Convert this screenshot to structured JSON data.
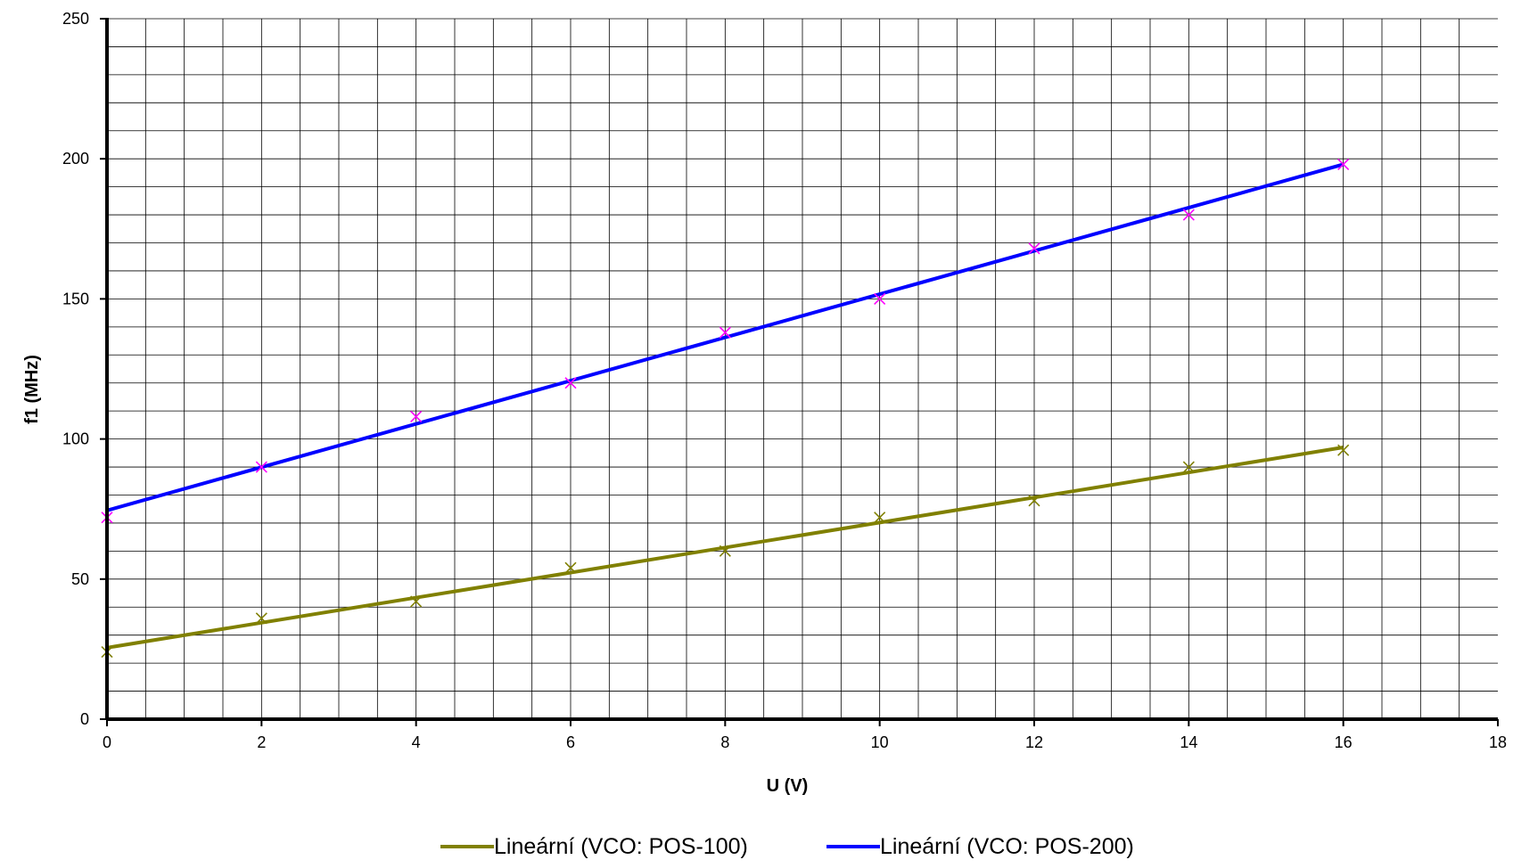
{
  "chart_data": {
    "type": "scatter",
    "xlabel": "U (V)",
    "ylabel": "f1 (MHz)",
    "xlim": [
      0,
      18
    ],
    "ylim": [
      0,
      250
    ],
    "x_ticks": [
      "0",
      "2",
      "4",
      "6",
      "8",
      "10",
      "12",
      "14",
      "16",
      "18"
    ],
    "y_ticks": [
      "0",
      "50",
      "100",
      "150",
      "200",
      "250"
    ],
    "grid": true,
    "legend_position": "bottom",
    "series": [
      {
        "id": "pos100",
        "point_color": "#808000",
        "points": [
          [
            0,
            24
          ],
          [
            2,
            36
          ],
          [
            4,
            42
          ],
          [
            6,
            54
          ],
          [
            8,
            60
          ],
          [
            10,
            72
          ],
          [
            12,
            78
          ],
          [
            14,
            90
          ],
          [
            16,
            96
          ]
        ],
        "trendline": {
          "name": "Lineární (VCO: POS-100)",
          "color": "#808000",
          "from": [
            0,
            25.5
          ],
          "to": [
            16,
            97
          ]
        }
      },
      {
        "id": "pos200",
        "point_color": "#ff00ff",
        "points": [
          [
            0,
            72
          ],
          [
            2,
            90
          ],
          [
            4,
            108
          ],
          [
            6,
            120
          ],
          [
            8,
            138
          ],
          [
            10,
            150
          ],
          [
            12,
            168
          ],
          [
            14,
            180
          ],
          [
            16,
            198
          ]
        ],
        "trendline": {
          "name": "Lineární (VCO: POS-200)",
          "color": "#0000ff",
          "from": [
            0,
            74.5
          ],
          "to": [
            16,
            198
          ]
        }
      }
    ]
  }
}
